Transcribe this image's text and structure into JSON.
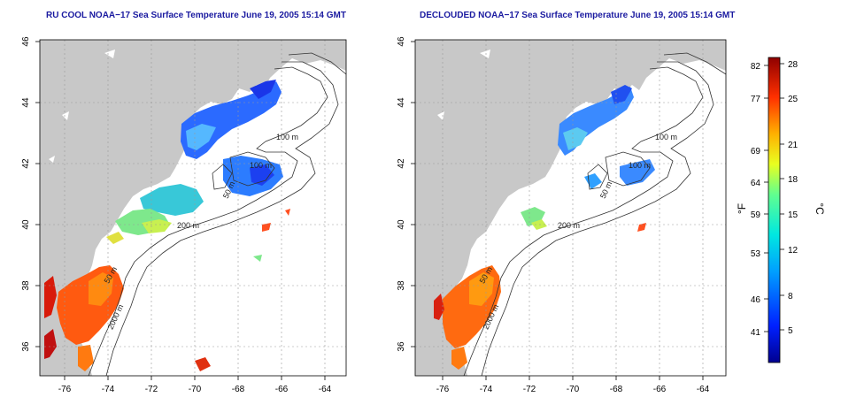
{
  "left_map": {
    "title": "RU COOL NOAA−17 Sea Surface Temperature June 19, 2005 15:14 GMT",
    "contour_labels": [
      "100 m",
      "100 m",
      "50 m",
      "200 m",
      "50 m",
      "2000 m"
    ]
  },
  "right_map": {
    "title": "DECLOUDED NOAA−17 Sea Surface Temperature June 19, 2005 15:14 GMT",
    "contour_labels": [
      "100 m",
      "100 m",
      "50 m",
      "200 m",
      "50 m",
      "2000 m"
    ]
  },
  "axes": {
    "lon_ticks": [
      "-76",
      "-74",
      "-72",
      "-70",
      "-68",
      "-66",
      "-64"
    ],
    "lat_ticks": [
      "46",
      "44",
      "42",
      "40",
      "38",
      "36"
    ]
  },
  "colorbar": {
    "fahrenheit_unit": "°F",
    "celsius_unit": "°C",
    "fahrenheit_ticks": [
      "82",
      "77",
      "69",
      "64",
      "59",
      "53",
      "46",
      "41"
    ],
    "celsius_ticks": [
      "28",
      "25",
      "21",
      "18",
      "15",
      "12",
      "8",
      "5"
    ]
  },
  "colors": {
    "land": "#c8c8c8",
    "ocean_no_data": "#ffffff",
    "title": "#1a1aa0"
  }
}
